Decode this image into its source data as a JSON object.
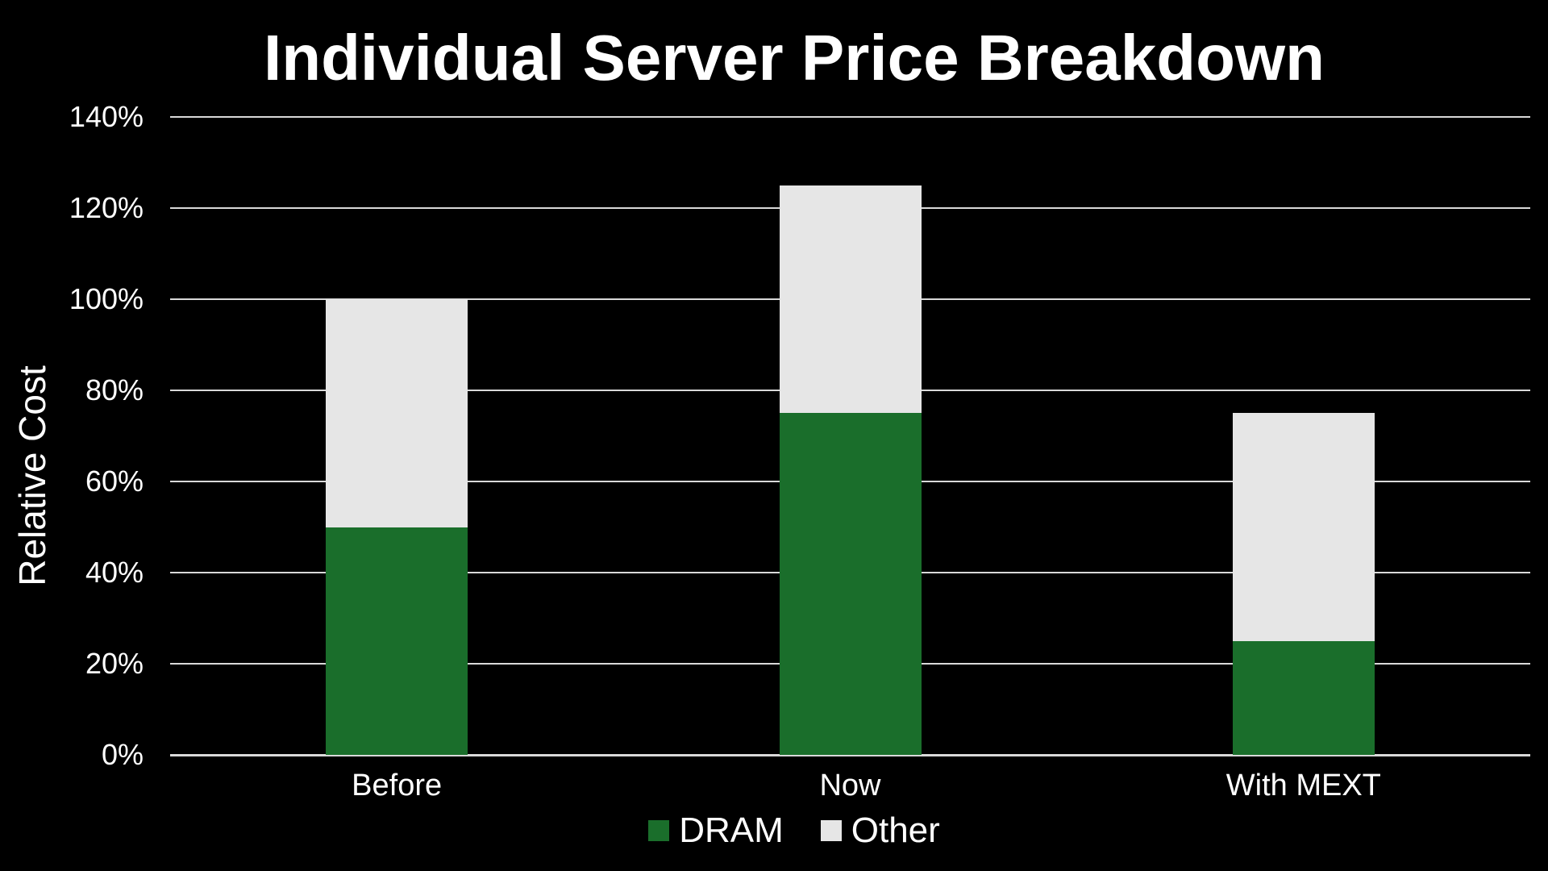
{
  "slide": {
    "background": "#000000",
    "text_color": "#FFFFFF"
  },
  "chart_data": {
    "type": "bar",
    "stacked": true,
    "title": "Individual Server Price Breakdown",
    "ylabel": "Relative Cost",
    "xlabel": "",
    "categories": [
      "Before",
      "Now",
      "With MEXT"
    ],
    "series": [
      {
        "name": "DRAM",
        "color": "#1A6E2B",
        "values": [
          50,
          75,
          25
        ]
      },
      {
        "name": "Other",
        "color": "#E6E6E6",
        "values": [
          50,
          50,
          50
        ]
      }
    ],
    "stack_totals": [
      100,
      125,
      75
    ],
    "ylim": [
      0,
      140
    ],
    "ytick_step": 20,
    "ytick_labels": [
      "0%",
      "20%",
      "40%",
      "60%",
      "80%",
      "100%",
      "120%",
      "140%"
    ],
    "grid": true,
    "gridline_color": "#D9D9D9",
    "legend_position": "bottom",
    "legend_labels": [
      "DRAM",
      "Other"
    ]
  }
}
